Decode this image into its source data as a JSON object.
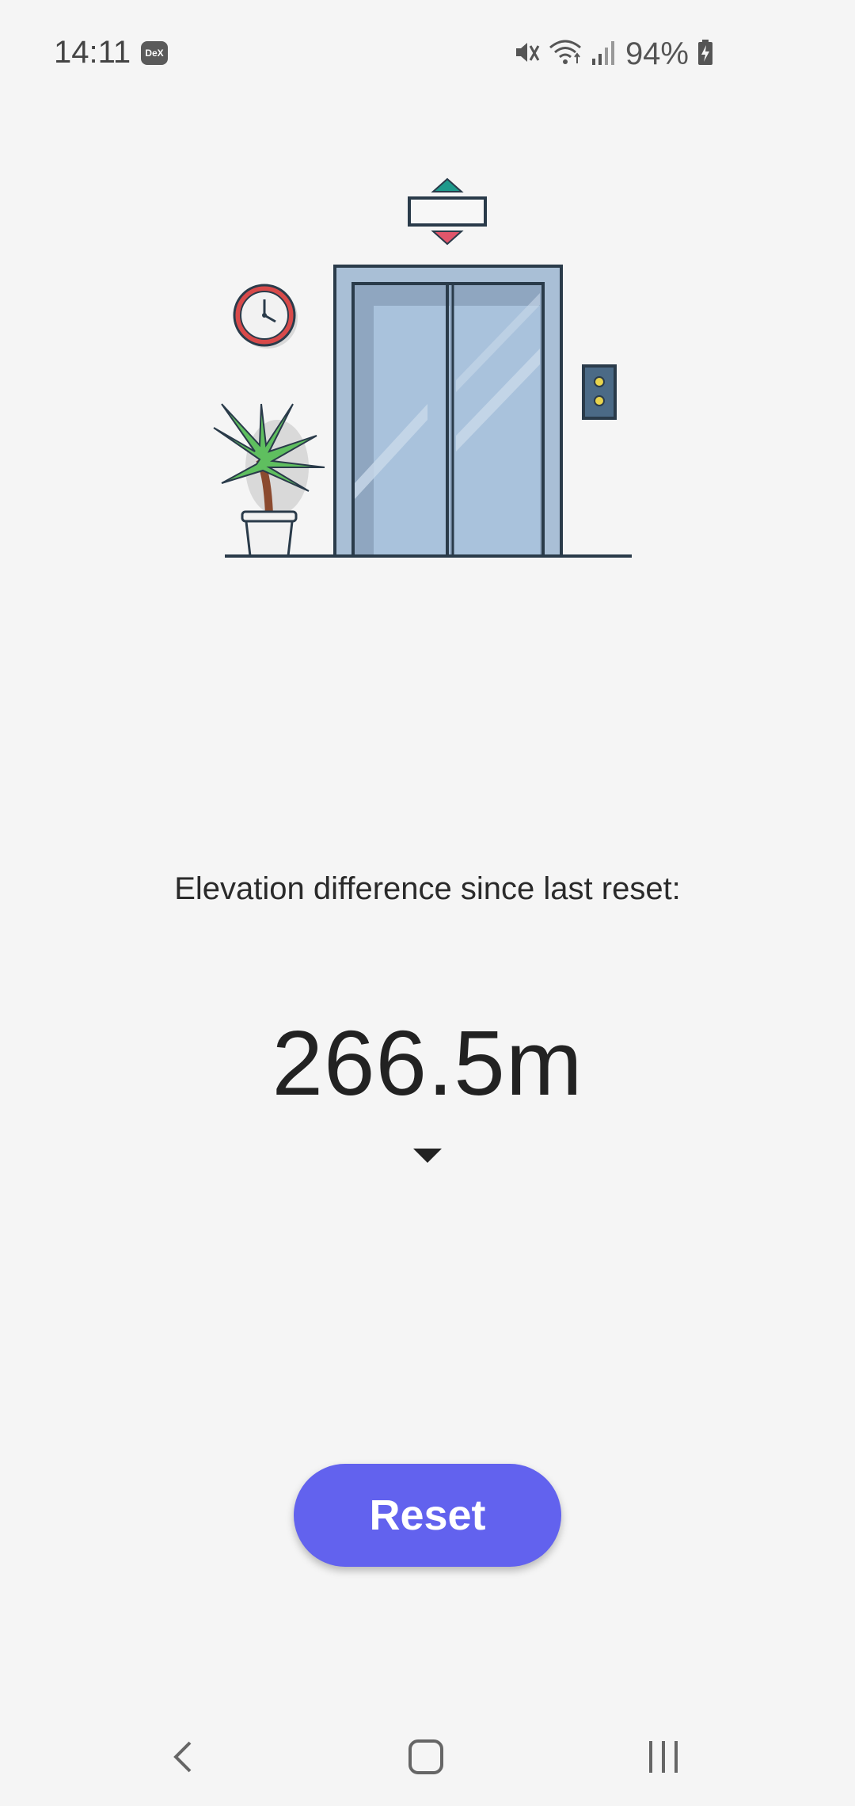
{
  "status_bar": {
    "time": "14:11",
    "dex_label": "DeX",
    "battery_percent": "94%",
    "icons": [
      "dex-icon",
      "mute-icon",
      "wifi-icon",
      "signal-icon",
      "battery-charging-icon"
    ]
  },
  "main": {
    "caption": "Elevation difference since last reset:",
    "elevation_value": "266.5m",
    "trend_icon": "down-triangle-icon",
    "reset_label": "Reset"
  },
  "nav_bar": {
    "icons": [
      "back-icon",
      "home-icon",
      "recents-icon"
    ]
  },
  "colors": {
    "background": "#f5f5f5",
    "accent": "#6262ee",
    "up_arrow": "#1e9a8c",
    "down_arrow": "#e0566b"
  }
}
